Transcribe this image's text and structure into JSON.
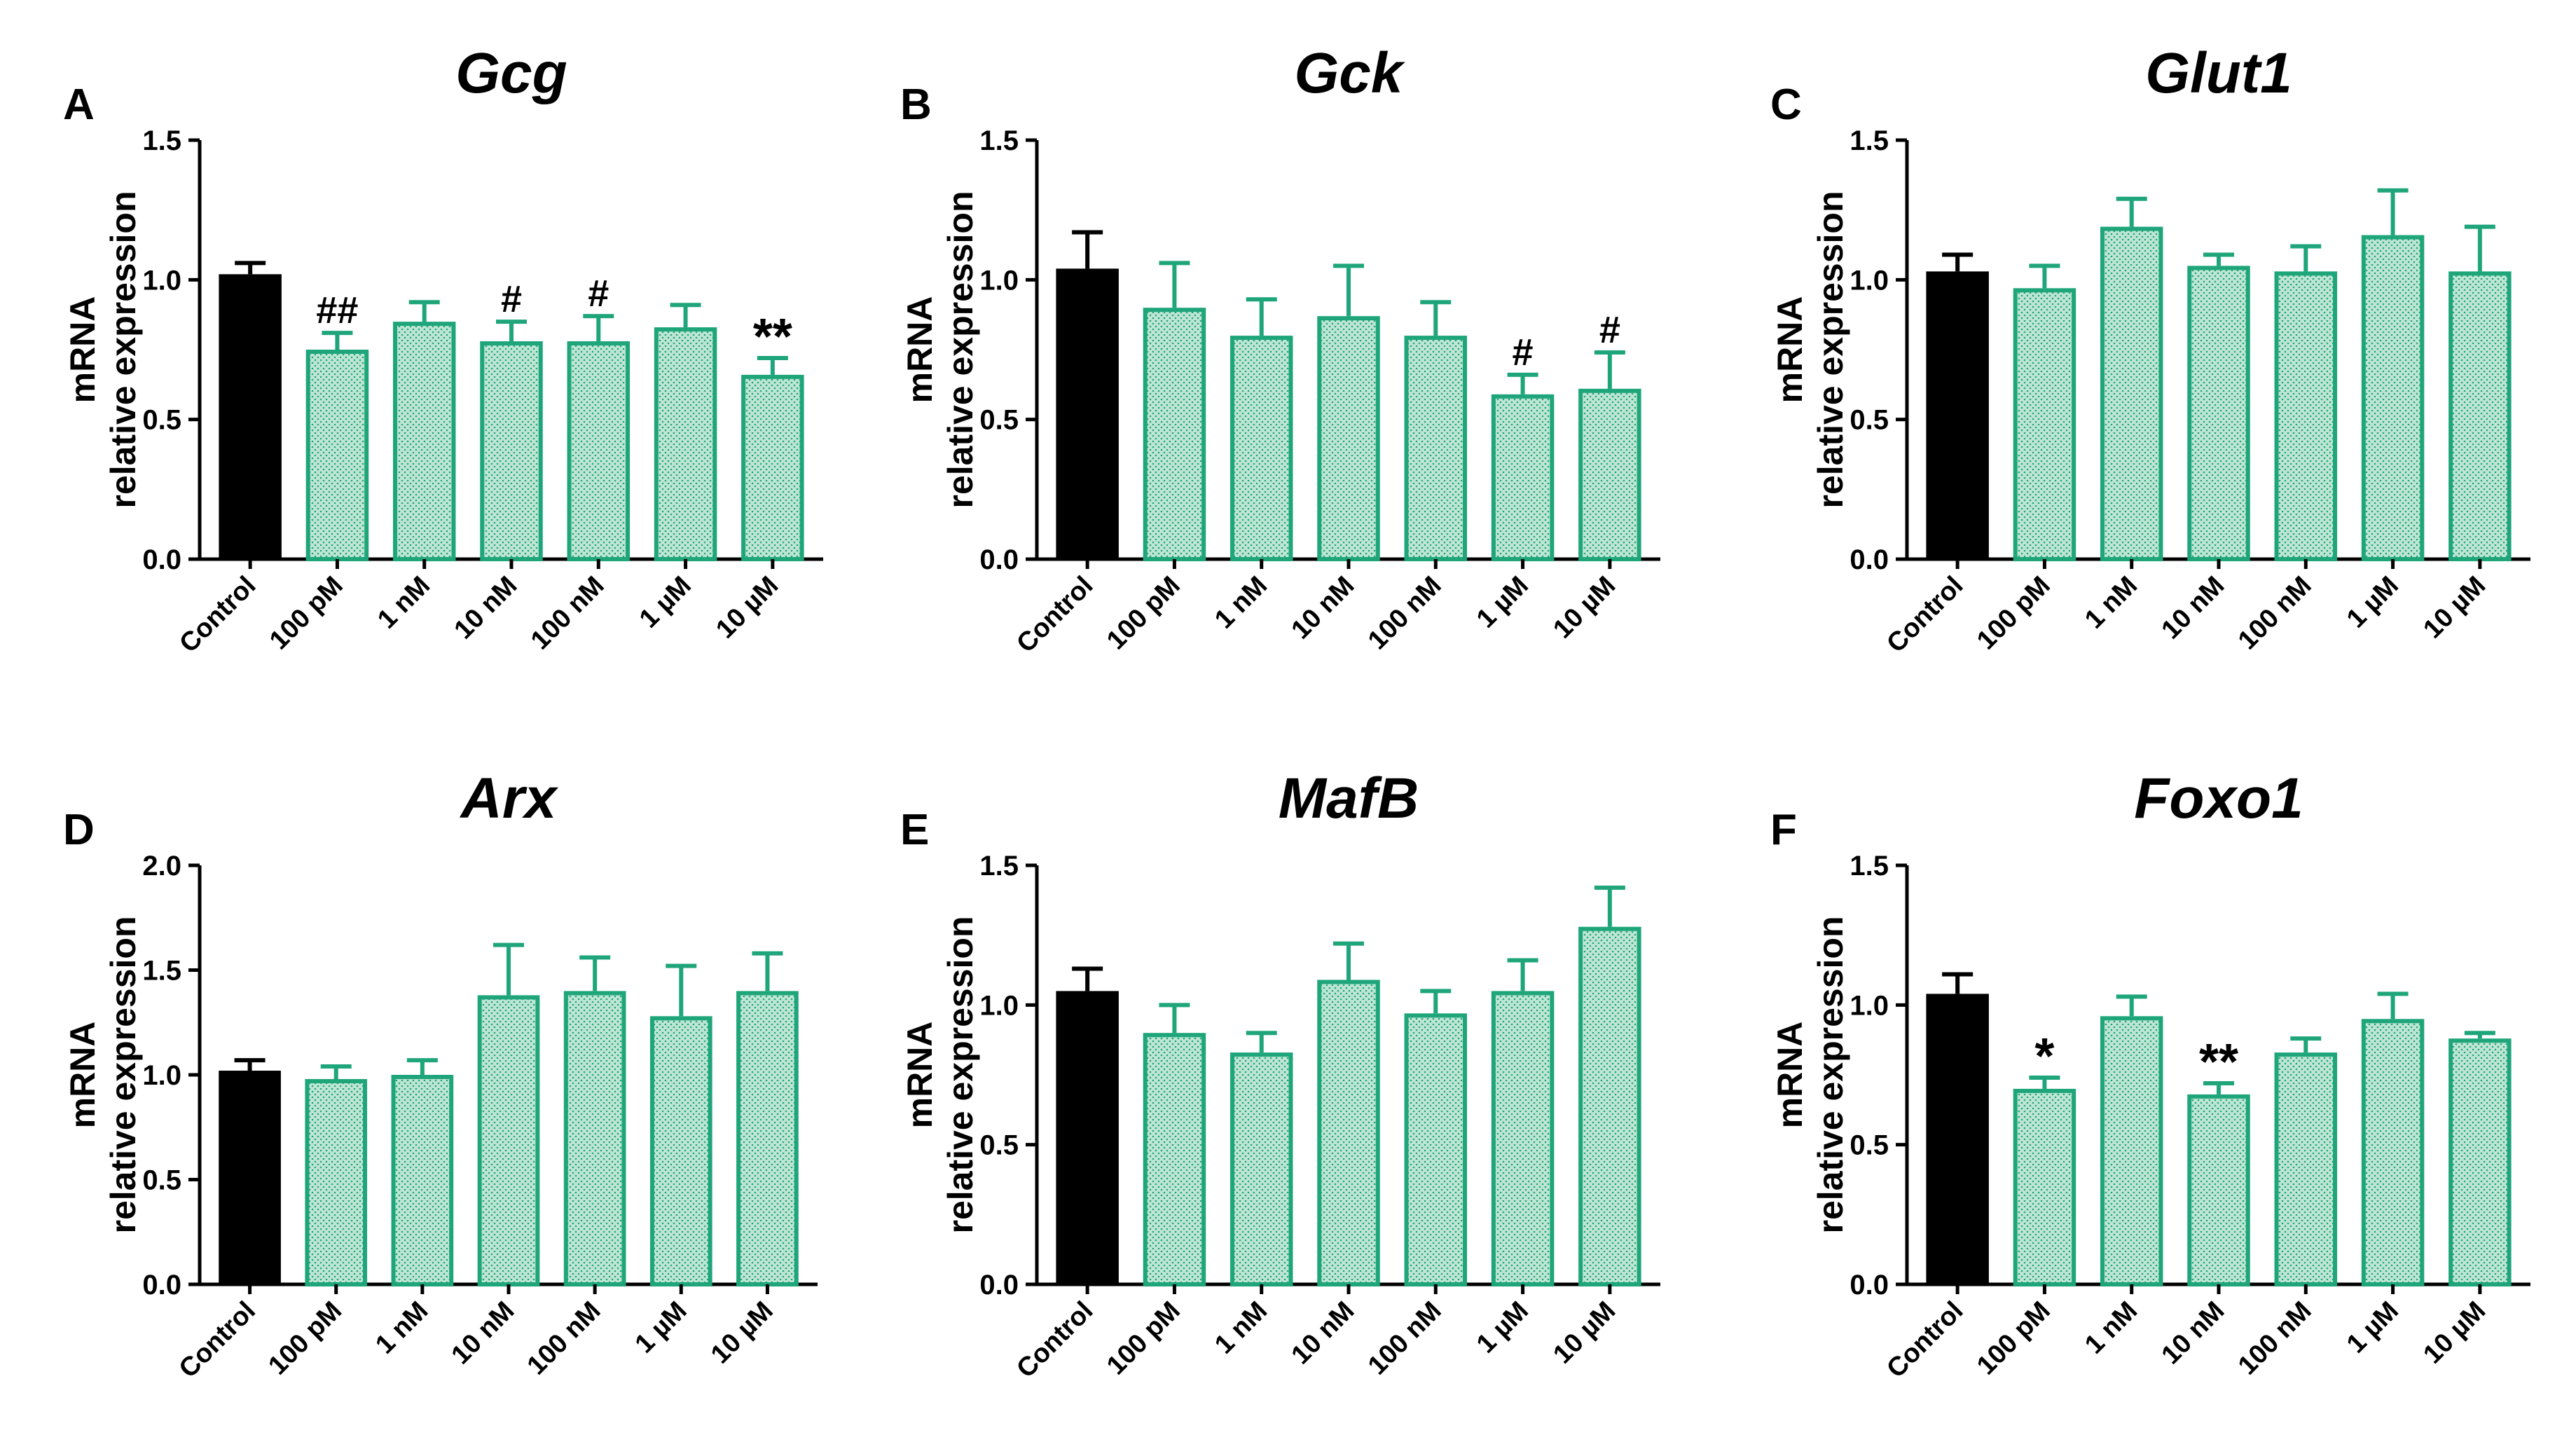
{
  "colors": {
    "control_fill": "#000000",
    "treatment_stroke": "#1fa57a",
    "treatment_fill": "#bfe6d5",
    "axis": "#000000"
  },
  "chart_data": [
    {
      "type": "bar",
      "panel_label": "A",
      "title": "Gcg",
      "ylabel_line1": "mRNA",
      "ylabel_line2": "relative expression",
      "categories": [
        "Control",
        "100 pM",
        "1 nM",
        "10 nM",
        "100 nM",
        "1 µM",
        "10 µM"
      ],
      "values": [
        1.02,
        0.75,
        0.85,
        0.78,
        0.78,
        0.83,
        0.66
      ],
      "errors": [
        0.04,
        0.06,
        0.07,
        0.07,
        0.09,
        0.08,
        0.06
      ],
      "annotations": [
        "",
        "##",
        "",
        "#",
        "#",
        "",
        "**"
      ],
      "ylim": [
        0,
        1.5
      ],
      "yticks": [
        "0.0",
        "0.5",
        "1.0",
        "1.5"
      ]
    },
    {
      "type": "bar",
      "panel_label": "B",
      "title": "Gck",
      "ylabel_line1": "mRNA",
      "ylabel_line2": "relative expression",
      "categories": [
        "Control",
        "100 pM",
        "1 nM",
        "10 nM",
        "100 nM",
        "1 µM",
        "10 µM"
      ],
      "values": [
        1.04,
        0.9,
        0.8,
        0.87,
        0.8,
        0.59,
        0.61
      ],
      "errors": [
        0.13,
        0.16,
        0.13,
        0.18,
        0.12,
        0.07,
        0.13
      ],
      "annotations": [
        "",
        "",
        "",
        "",
        "",
        "#",
        "#"
      ],
      "ylim": [
        0,
        1.5
      ],
      "yticks": [
        "0.0",
        "0.5",
        "1.0",
        "1.5"
      ]
    },
    {
      "type": "bar",
      "panel_label": "C",
      "title": "Glut1",
      "ylabel_line1": "mRNA",
      "ylabel_line2": "relative expression",
      "categories": [
        "Control",
        "100 pM",
        "1 nM",
        "10 nM",
        "100 nM",
        "1 µM",
        "10 µM"
      ],
      "values": [
        1.03,
        0.97,
        1.19,
        1.05,
        1.03,
        1.16,
        1.03
      ],
      "errors": [
        0.06,
        0.08,
        0.1,
        0.04,
        0.09,
        0.16,
        0.16
      ],
      "annotations": [
        "",
        "",
        "",
        "",
        "",
        "",
        ""
      ],
      "ylim": [
        0,
        1.5
      ],
      "yticks": [
        "0.0",
        "0.5",
        "1.0",
        "1.5"
      ]
    },
    {
      "type": "bar",
      "panel_label": "D",
      "title": "Arx",
      "ylabel_line1": "mRNA",
      "ylabel_line2": "relative expression",
      "categories": [
        "Control",
        "100 pM",
        "1 nM",
        "10 nM",
        "100 nM",
        "1 µM",
        "10 µM"
      ],
      "values": [
        1.02,
        0.98,
        1.0,
        1.38,
        1.4,
        1.28,
        1.4
      ],
      "errors": [
        0.05,
        0.06,
        0.07,
        0.24,
        0.16,
        0.24,
        0.18
      ],
      "annotations": [
        "",
        "",
        "",
        "",
        "",
        "",
        ""
      ],
      "ylim": [
        0,
        2.0
      ],
      "yticks": [
        "0.0",
        "0.5",
        "1.0",
        "1.5",
        "2.0"
      ]
    },
    {
      "type": "bar",
      "panel_label": "E",
      "title": "MafB",
      "ylabel_line1": "mRNA",
      "ylabel_line2": "relative expression",
      "categories": [
        "Control",
        "100 pM",
        "1 nM",
        "10 nM",
        "100 nM",
        "1 µM",
        "10 µM"
      ],
      "values": [
        1.05,
        0.9,
        0.83,
        1.09,
        0.97,
        1.05,
        1.28
      ],
      "errors": [
        0.08,
        0.1,
        0.07,
        0.13,
        0.08,
        0.11,
        0.14
      ],
      "annotations": [
        "",
        "",
        "",
        "",
        "",
        "",
        ""
      ],
      "ylim": [
        0,
        1.5
      ],
      "yticks": [
        "0.0",
        "0.5",
        "1.0",
        "1.5"
      ]
    },
    {
      "type": "bar",
      "panel_label": "F",
      "title": "Foxo1",
      "ylabel_line1": "mRNA",
      "ylabel_line2": "relative expression",
      "categories": [
        "Control",
        "100 pM",
        "1 nM",
        "10 nM",
        "100 nM",
        "1 µM",
        "10 µM"
      ],
      "values": [
        1.04,
        0.7,
        0.96,
        0.68,
        0.83,
        0.95,
        0.88
      ],
      "errors": [
        0.07,
        0.04,
        0.07,
        0.04,
        0.05,
        0.09,
        0.02
      ],
      "annotations": [
        "",
        "*",
        "",
        "**",
        "",
        "",
        ""
      ],
      "ylim": [
        0,
        1.5
      ],
      "yticks": [
        "0.0",
        "0.5",
        "1.0",
        "1.5"
      ]
    }
  ]
}
